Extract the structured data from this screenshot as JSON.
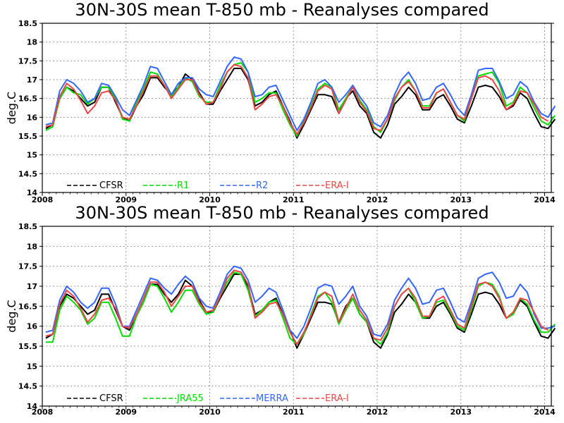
{
  "chart_data": [
    {
      "type": "line",
      "title": "30N-30S mean T-850 mb - Reanalyses compared",
      "ylabel": "deg.C",
      "xlabel": "",
      "xlim": [
        2008,
        2014.08
      ],
      "ylim": [
        14,
        18.5
      ],
      "yticks": [
        "14",
        "14.5",
        "15",
        "15.5",
        "16",
        "16.5",
        "17",
        "17.5",
        "18",
        "18.5"
      ],
      "xticks": [
        "2008",
        "2009",
        "2010",
        "2011",
        "2012",
        "2013",
        "2014"
      ],
      "grid": true,
      "legend_position": "bottom",
      "series": [
        {
          "name": "CFSR",
          "color": "#000000",
          "values": [
            15.7,
            15.8,
            16.5,
            16.8,
            16.7,
            16.5,
            16.3,
            16.4,
            16.8,
            16.8,
            16.4,
            16.0,
            15.9,
            16.3,
            16.6,
            17.05,
            17.05,
            16.8,
            16.6,
            16.8,
            17.15,
            17.0,
            16.65,
            16.35,
            16.35,
            16.7,
            17.0,
            17.3,
            17.3,
            17.0,
            16.3,
            16.4,
            16.6,
            16.7,
            16.3,
            15.9,
            15.45,
            15.8,
            16.2,
            16.6,
            16.6,
            16.55,
            16.1,
            16.5,
            16.7,
            16.3,
            16.1,
            15.6,
            15.45,
            15.8,
            16.35,
            16.55,
            16.8,
            16.6,
            16.2,
            16.2,
            16.5,
            16.6,
            16.3,
            15.95,
            15.85,
            16.3,
            16.8,
            16.85,
            16.8,
            16.55,
            16.2,
            16.3,
            16.65,
            16.5,
            16.1,
            15.75,
            15.7,
            15.95
          ]
        },
        {
          "name": "R1",
          "color": "#00dd00",
          "values": [
            15.65,
            15.75,
            16.5,
            16.8,
            16.65,
            16.6,
            16.35,
            16.5,
            16.8,
            16.8,
            16.5,
            15.95,
            15.9,
            16.4,
            16.75,
            17.2,
            17.15,
            16.85,
            16.55,
            16.8,
            17.05,
            16.95,
            16.55,
            16.4,
            16.4,
            16.85,
            17.2,
            17.4,
            17.45,
            17.2,
            16.4,
            16.5,
            16.65,
            16.65,
            16.2,
            15.8,
            15.5,
            15.9,
            16.3,
            16.75,
            16.9,
            16.8,
            16.2,
            16.5,
            16.8,
            16.45,
            16.2,
            15.75,
            15.6,
            15.95,
            16.45,
            16.8,
            17.0,
            16.7,
            16.3,
            16.3,
            16.65,
            16.75,
            16.4,
            16.05,
            15.9,
            16.5,
            17.1,
            17.15,
            17.2,
            16.9,
            16.3,
            16.4,
            16.8,
            16.65,
            16.25,
            15.9,
            15.8,
            16.05
          ]
        },
        {
          "name": "R2",
          "color": "#3366ff",
          "values": [
            15.8,
            15.85,
            16.7,
            17.0,
            16.9,
            16.7,
            16.4,
            16.5,
            16.9,
            16.85,
            16.55,
            16.2,
            16.05,
            16.45,
            16.85,
            17.35,
            17.3,
            16.95,
            16.6,
            16.9,
            17.05,
            17.05,
            16.75,
            16.6,
            16.55,
            16.95,
            17.35,
            17.6,
            17.55,
            17.2,
            16.55,
            16.6,
            16.8,
            16.85,
            16.45,
            16.05,
            15.65,
            15.95,
            16.4,
            16.9,
            17.0,
            16.8,
            16.4,
            16.6,
            16.85,
            16.55,
            16.3,
            15.85,
            15.75,
            16.05,
            16.6,
            17.0,
            17.2,
            16.9,
            16.45,
            16.5,
            16.8,
            16.9,
            16.6,
            16.25,
            16.05,
            16.6,
            17.25,
            17.3,
            17.3,
            16.95,
            16.5,
            16.6,
            16.95,
            16.8,
            16.4,
            16.1,
            16.0,
            16.3
          ]
        },
        {
          "name": "ERA-I",
          "color": "#ee4444",
          "values": [
            15.75,
            15.8,
            16.55,
            16.9,
            16.75,
            16.45,
            16.1,
            16.3,
            16.65,
            16.7,
            16.45,
            16.0,
            15.95,
            16.3,
            16.7,
            17.1,
            17.1,
            16.85,
            16.5,
            16.75,
            17.0,
            17.0,
            16.6,
            16.35,
            16.4,
            16.75,
            17.2,
            17.4,
            17.35,
            17.05,
            16.2,
            16.35,
            16.55,
            16.6,
            16.3,
            15.85,
            15.55,
            15.85,
            16.25,
            16.7,
            16.85,
            16.75,
            16.1,
            16.45,
            16.8,
            16.4,
            16.15,
            15.7,
            15.65,
            15.95,
            16.5,
            16.8,
            16.95,
            16.7,
            16.25,
            16.25,
            16.65,
            16.75,
            16.4,
            16.05,
            15.95,
            16.5,
            17.05,
            17.1,
            17.0,
            16.7,
            16.2,
            16.35,
            16.7,
            16.65,
            16.35,
            16.0,
            15.9
          ]
        }
      ]
    },
    {
      "type": "line",
      "title": "30N-30S mean T-850 mb - Reanalyses compared",
      "ylabel": "deg.C",
      "xlabel": "",
      "xlim": [
        2008,
        2014.08
      ],
      "ylim": [
        14,
        18.5
      ],
      "yticks": [
        "14",
        "14.5",
        "15",
        "15.5",
        "16",
        "16.5",
        "17",
        "17.5",
        "18",
        "18.5"
      ],
      "xticks": [
        "2008",
        "2009",
        "2010",
        "2011",
        "2012",
        "2013",
        "2014"
      ],
      "grid": true,
      "legend_position": "bottom",
      "series": [
        {
          "name": "CFSR",
          "color": "#000000",
          "values": [
            15.7,
            15.8,
            16.5,
            16.8,
            16.7,
            16.5,
            16.3,
            16.4,
            16.8,
            16.8,
            16.4,
            16.0,
            15.9,
            16.3,
            16.6,
            17.05,
            17.05,
            16.8,
            16.6,
            16.8,
            17.15,
            17.0,
            16.65,
            16.35,
            16.35,
            16.7,
            17.0,
            17.3,
            17.3,
            17.0,
            16.3,
            16.4,
            16.6,
            16.7,
            16.3,
            15.9,
            15.45,
            15.8,
            16.2,
            16.6,
            16.6,
            16.55,
            16.1,
            16.5,
            16.7,
            16.3,
            16.1,
            15.6,
            15.45,
            15.8,
            16.35,
            16.55,
            16.8,
            16.6,
            16.2,
            16.2,
            16.5,
            16.6,
            16.3,
            15.95,
            15.85,
            16.3,
            16.8,
            16.85,
            16.8,
            16.55,
            16.2,
            16.3,
            16.65,
            16.5,
            16.1,
            15.75,
            15.7,
            15.95
          ]
        },
        {
          "name": "JRA55",
          "color": "#00dd00",
          "values": [
            15.6,
            15.6,
            16.4,
            16.75,
            16.6,
            16.4,
            16.05,
            16.2,
            16.6,
            16.6,
            16.2,
            15.75,
            15.75,
            16.25,
            16.6,
            17.05,
            17.0,
            16.7,
            16.35,
            16.6,
            16.9,
            16.9,
            16.55,
            16.3,
            16.35,
            16.75,
            17.1,
            17.35,
            17.3,
            16.9,
            16.25,
            16.4,
            16.6,
            16.65,
            16.2,
            15.7,
            15.55,
            15.8,
            16.3,
            16.75,
            16.85,
            16.6,
            16.05,
            16.4,
            16.7,
            16.3,
            16.1,
            15.7,
            15.55,
            15.85,
            16.5,
            16.8,
            16.95,
            16.6,
            16.2,
            16.25,
            16.6,
            16.65,
            16.35,
            16.0,
            15.9,
            16.4,
            17.0,
            17.1,
            17.05,
            16.75,
            16.2,
            16.3,
            16.7,
            16.55,
            16.15,
            15.85,
            15.85,
            16.05
          ]
        },
        {
          "name": "MERRA",
          "color": "#3366ff",
          "values": [
            15.85,
            15.9,
            16.65,
            17.0,
            16.85,
            16.6,
            16.45,
            16.6,
            16.95,
            16.95,
            16.55,
            16.0,
            16.0,
            16.4,
            16.8,
            17.2,
            17.15,
            16.95,
            16.8,
            17.05,
            17.25,
            17.1,
            16.7,
            16.5,
            16.45,
            16.85,
            17.3,
            17.5,
            17.45,
            17.15,
            16.6,
            16.75,
            16.95,
            16.85,
            16.4,
            15.9,
            15.7,
            16.0,
            16.45,
            16.95,
            17.05,
            17.0,
            16.55,
            16.75,
            17.0,
            16.5,
            16.25,
            15.8,
            15.75,
            16.05,
            16.65,
            16.95,
            17.2,
            16.95,
            16.55,
            16.6,
            16.9,
            16.95,
            16.6,
            16.2,
            16.1,
            16.6,
            17.2,
            17.3,
            17.35,
            17.1,
            16.7,
            16.75,
            17.05,
            16.85,
            16.3,
            15.95,
            15.95,
            16.0
          ]
        },
        {
          "name": "ERA-I",
          "color": "#ee4444",
          "values": [
            15.75,
            15.8,
            16.55,
            16.9,
            16.75,
            16.45,
            16.1,
            16.3,
            16.65,
            16.7,
            16.45,
            16.0,
            15.95,
            16.3,
            16.7,
            17.1,
            17.1,
            16.85,
            16.5,
            16.75,
            17.0,
            17.0,
            16.6,
            16.35,
            16.4,
            16.75,
            17.2,
            17.4,
            17.35,
            17.05,
            16.2,
            16.35,
            16.55,
            16.6,
            16.3,
            15.85,
            15.55,
            15.85,
            16.25,
            16.7,
            16.85,
            16.75,
            16.1,
            16.45,
            16.8,
            16.4,
            16.15,
            15.7,
            15.65,
            15.95,
            16.5,
            16.8,
            16.95,
            16.7,
            16.25,
            16.25,
            16.65,
            16.75,
            16.4,
            16.05,
            15.95,
            16.5,
            17.05,
            17.1,
            17.0,
            16.7,
            16.2,
            16.35,
            16.7,
            16.65,
            16.35,
            16.0,
            15.9
          ]
        }
      ]
    }
  ]
}
